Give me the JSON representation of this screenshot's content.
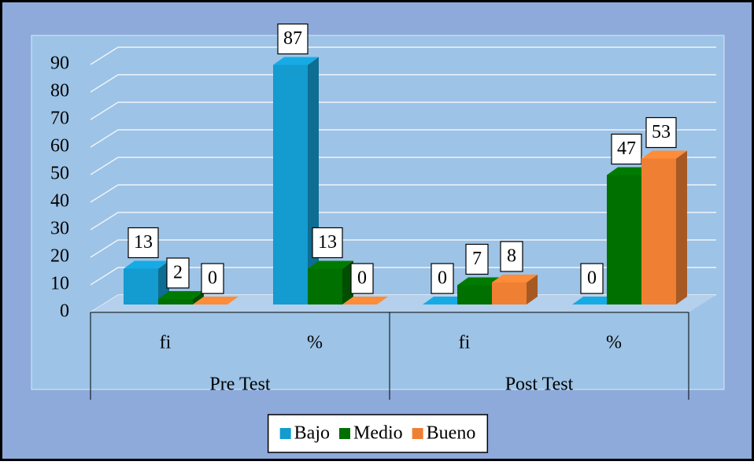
{
  "chart_data": {
    "type": "bar3d",
    "categories": [
      "fi",
      "%",
      "fi",
      "%"
    ],
    "groups": [
      "Pre Test",
      "Post Test"
    ],
    "series": [
      {
        "name": "Bajo",
        "color": "#149bd0",
        "values": [
          13,
          87,
          0,
          0
        ]
      },
      {
        "name": "Medio",
        "color": "#007000",
        "values": [
          2,
          13,
          7,
          47
        ]
      },
      {
        "name": "Bueno",
        "color": "#ef7f33",
        "values": [
          0,
          0,
          8,
          53
        ]
      }
    ],
    "ylim": [
      0,
      90
    ],
    "yticks": [
      0,
      10,
      20,
      30,
      40,
      50,
      60,
      70,
      80,
      90
    ],
    "grid": true,
    "legend": "bottom"
  }
}
